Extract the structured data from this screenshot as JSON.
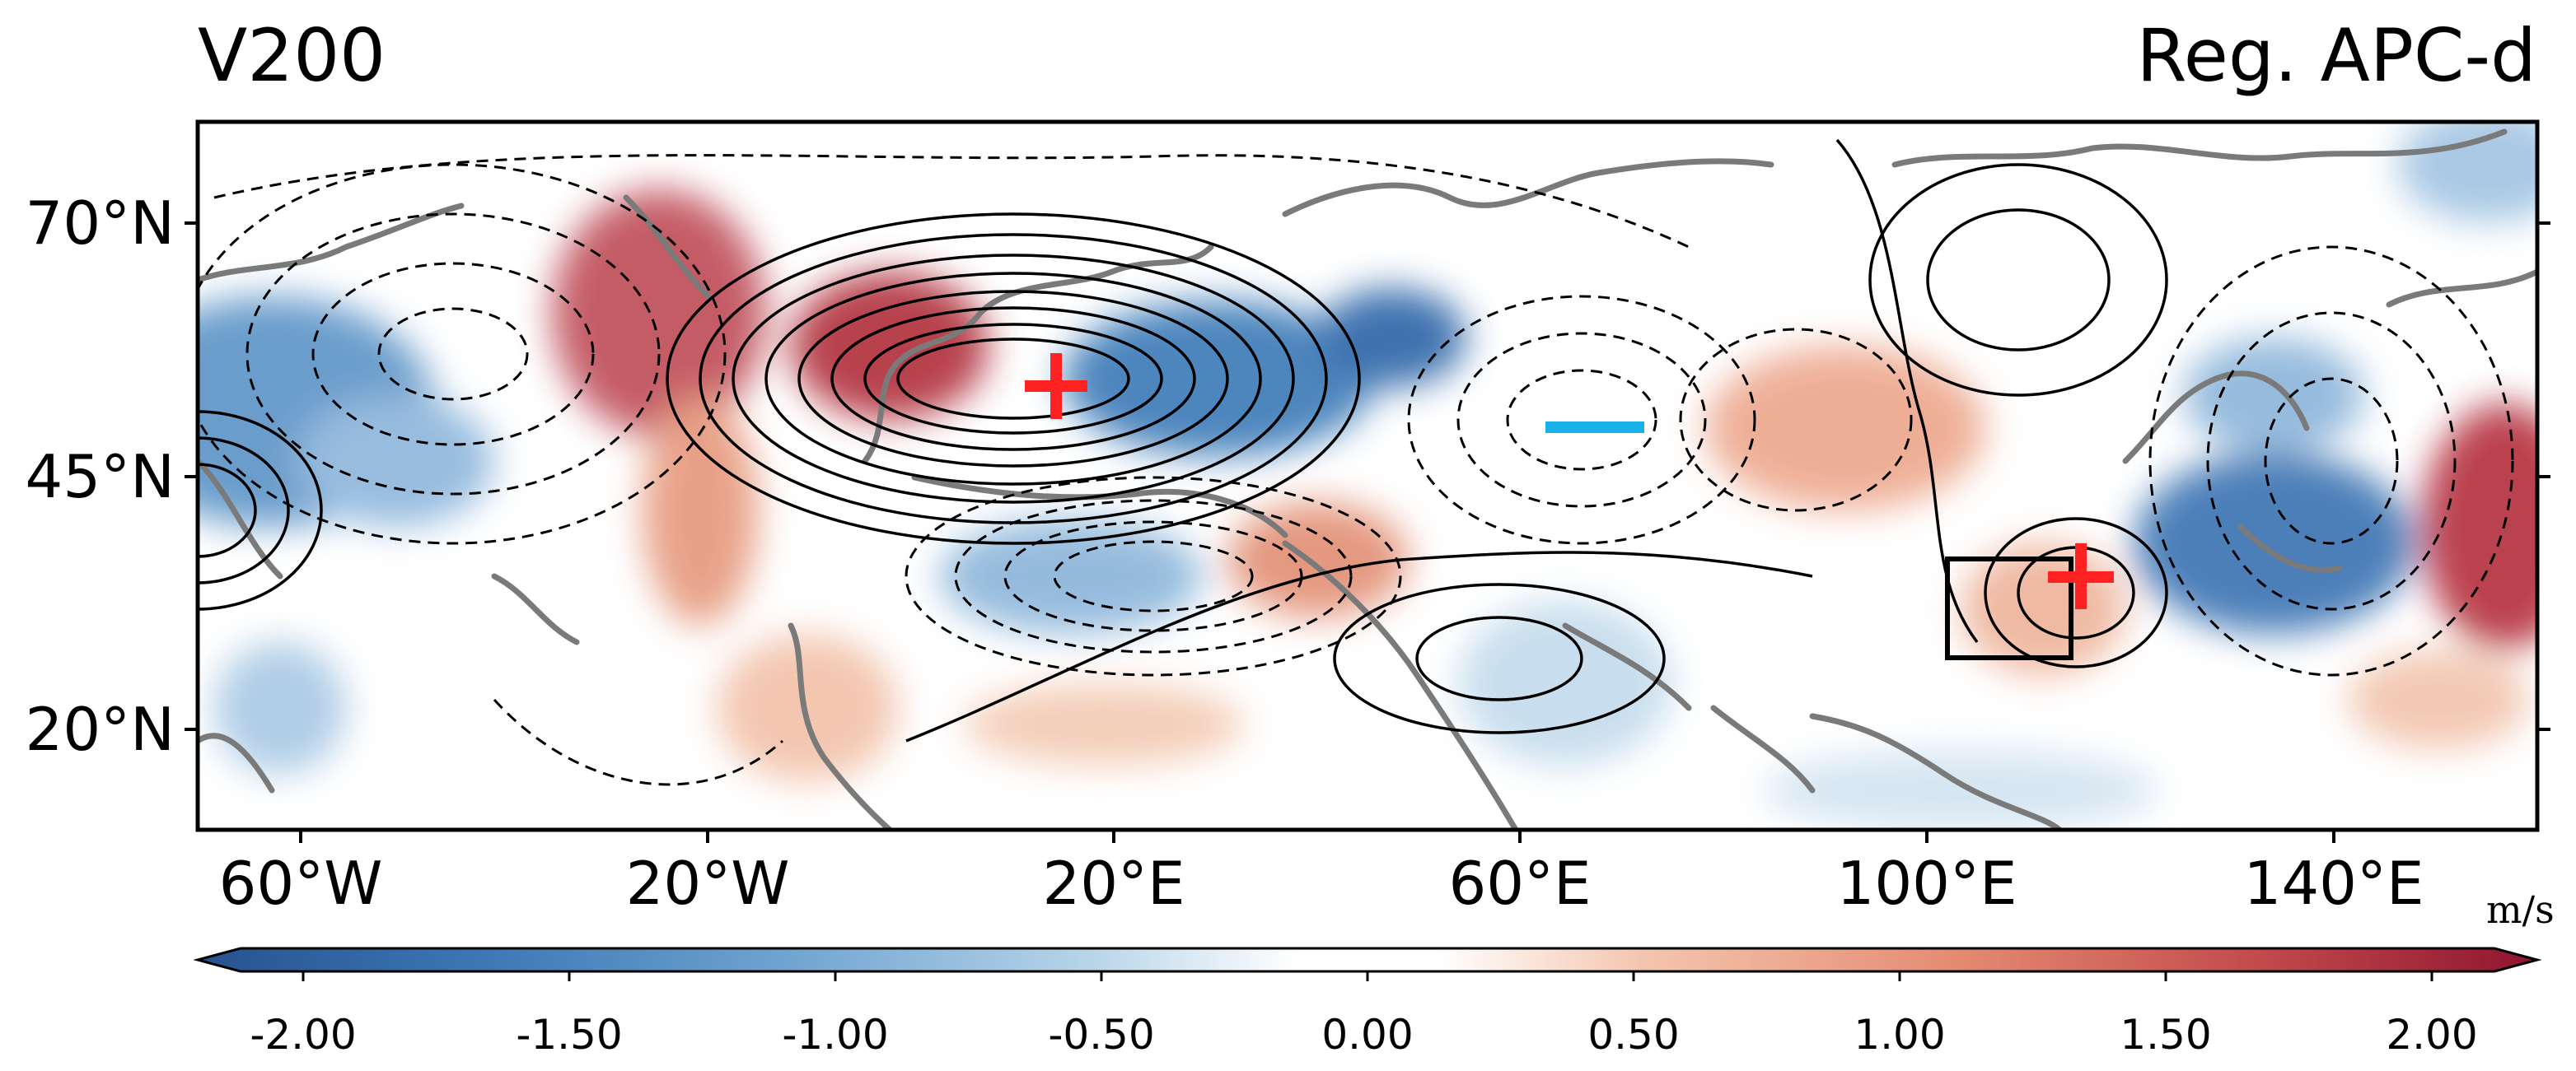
{
  "figure": {
    "variable_label": "V200",
    "panel_label": "Reg. APC-d",
    "units": "m/s"
  },
  "map": {
    "lon_ticks": [
      "60°W",
      "20°W",
      "20°E",
      "60°E",
      "100°E",
      "140°E"
    ],
    "lat_ticks": [
      "70°N",
      "45°N",
      "20°N"
    ],
    "lon_range": [
      -70,
      160
    ],
    "lat_range": [
      10,
      80
    ],
    "markers": [
      {
        "symbol": "+",
        "lon": 14,
        "lat": 53,
        "color": "#ff2222"
      },
      {
        "symbol": "-",
        "lon": 67,
        "lat": 49,
        "color": "#1ab0e8"
      },
      {
        "symbol": "+",
        "lon": 114,
        "lat": 36,
        "color": "#ff2222"
      }
    ],
    "box": {
      "lon": [
        103,
        115
      ],
      "lat": [
        28,
        38
      ]
    }
  },
  "colorbar": {
    "tick_labels": [
      "-2.00",
      "-1.50",
      "-1.00",
      "-0.50",
      "0.00",
      "0.50",
      "1.00",
      "1.50",
      "2.00"
    ],
    "range": [
      -2.0,
      2.0
    ],
    "colors_negative": "#2c62a6",
    "colors_positive": "#a2212f"
  }
}
